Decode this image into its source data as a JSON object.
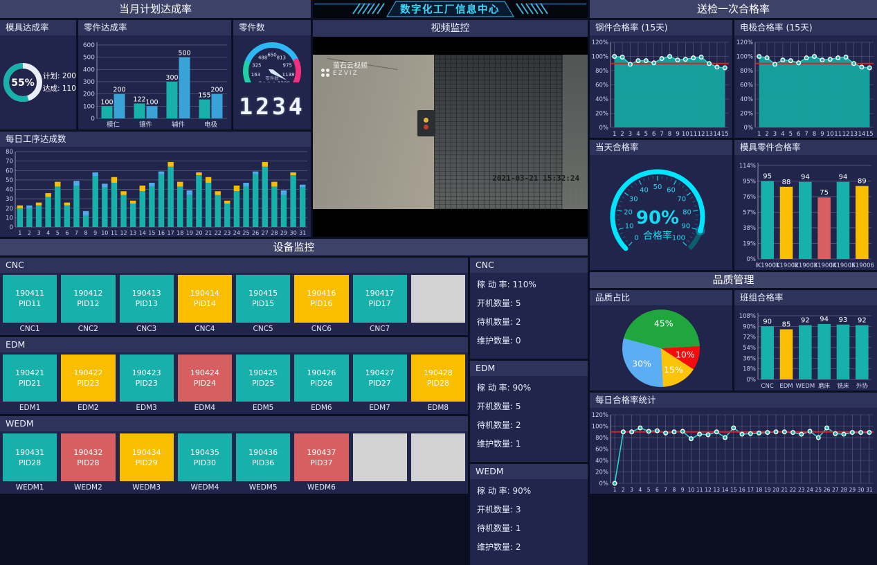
{
  "colors": {
    "teal": "#17b0aa",
    "blue": "#39a3d8",
    "capBlue": "#4fa8e8",
    "yellow": "#f9be00",
    "red": "#d85f5f",
    "gray": "#d2d2d2",
    "cyan": "#00e5ff",
    "cyanDim": "#0b5e6e",
    "green": "#1bd1a5",
    "skyblue": "#2db7f5",
    "pink": "#f5317f",
    "refline": "#e01f1f",
    "pieGreen": "#1fa63c",
    "pieRed": "#f40b0c",
    "pieYellow": "#fbc40a",
    "pieBlue": "#5baef3",
    "areaFill": "#14a5a0",
    "line": "#2ad5cd",
    "marker": "#2bb3ad"
  },
  "header": {
    "title": "数字化工厂信息中心"
  },
  "video": {
    "title": "视频监控",
    "watermark_name": "萤石云视频",
    "watermark_brand": "EZVIZ",
    "timestamp": "2021-03-21 15:32:24"
  },
  "left": {
    "section_title": "当月计划达成率",
    "mold_rate": {
      "title": "模具达成率",
      "percent": 55,
      "percent_label": "55%",
      "plan_label": "计划: 200",
      "done_label": "达成: 110"
    },
    "parts_rate": {
      "title": "零件达成率",
      "categories": [
        "模仁",
        "镶件",
        "辅件",
        "电极"
      ],
      "series": [
        {
          "color_key": "teal",
          "values": [
            100,
            122,
            300,
            155
          ]
        },
        {
          "color_key": "blue",
          "values": [
            200,
            100,
            500,
            200
          ]
        }
      ],
      "yticks": [
        0,
        100,
        200,
        300,
        400,
        500,
        600
      ],
      "ymax": 600
    },
    "parts_count": {
      "title": "零件数",
      "min": 0,
      "max": 1300,
      "value": 1234,
      "tick_labels": [
        "0",
        "163",
        "325",
        "488",
        "650",
        "813",
        "975",
        "1138",
        "1300"
      ],
      "segments": [
        {
          "to": 0.25,
          "color_key": "green"
        },
        {
          "to": 0.75,
          "color_key": "skyblue"
        },
        {
          "to": 1.0,
          "color_key": "pink"
        }
      ],
      "center_label": "零件数",
      "lcd_value": "1234",
      "digital_value": "1234"
    },
    "daily_process": {
      "title": "每日工序达成数",
      "x_labels": [
        "1",
        "2",
        "3",
        "4",
        "5",
        "6",
        "7",
        "8",
        "9",
        "10",
        "11",
        "12",
        "13",
        "14",
        "15",
        "16",
        "17",
        "18",
        "19",
        "20",
        "21",
        "22",
        "23",
        "24",
        "25",
        "26",
        "27",
        "28",
        "29",
        "30",
        "31"
      ],
      "base_values": [
        20,
        20,
        23,
        32,
        43,
        23,
        44,
        12,
        54,
        42,
        47,
        34,
        25,
        38,
        43,
        56,
        64,
        43,
        34,
        55,
        47,
        34,
        25,
        38,
        43,
        56,
        64,
        43,
        34,
        55,
        42
      ],
      "cap_values": [
        3,
        3,
        3,
        4,
        5,
        3,
        5,
        5,
        4,
        4,
        6,
        4,
        3,
        6,
        4,
        3,
        5,
        5,
        5,
        3,
        6,
        4,
        3,
        6,
        4,
        3,
        5,
        5,
        5,
        3,
        3
      ],
      "cap_colors": [
        "y",
        "b",
        "y",
        "y",
        "y",
        "y",
        "b",
        "b",
        "b",
        "b",
        "y",
        "y",
        "y",
        "y",
        "b",
        "b",
        "y",
        "y",
        "b",
        "y",
        "y",
        "y",
        "y",
        "y",
        "b",
        "b",
        "y",
        "y",
        "b",
        "y",
        "b"
      ],
      "yticks": [
        0,
        10,
        20,
        30,
        40,
        50,
        60,
        70,
        80
      ],
      "ymax": 80
    }
  },
  "equipment": {
    "section_title": "设备监控",
    "status_color_keys": {
      "run": "teal",
      "standby": "yellow",
      "maint": "red",
      "empty": "gray"
    },
    "groups": [
      {
        "name": "CNC",
        "tiles": [
          {
            "id": "190411",
            "pid": "PID11",
            "status": "run",
            "label": "CNC1"
          },
          {
            "id": "190412",
            "pid": "PID12",
            "status": "run",
            "label": "CNC2"
          },
          {
            "id": "190413",
            "pid": "PID13",
            "status": "run",
            "label": "CNC3"
          },
          {
            "id": "190414",
            "pid": "PID14",
            "status": "standby",
            "label": "CNC4"
          },
          {
            "id": "190415",
            "pid": "PID15",
            "status": "run",
            "label": "CNC5"
          },
          {
            "id": "190416",
            "pid": "PID16",
            "status": "standby",
            "label": "CNC6"
          },
          {
            "id": "190417",
            "pid": "PID17",
            "status": "run",
            "label": "CNC7"
          },
          {
            "status": "empty"
          }
        ],
        "stats": {
          "title": "CNC",
          "rows": [
            {
              "label": "稼 动 率",
              "value": "110%"
            },
            {
              "label": "开机数量",
              "value": "5"
            },
            {
              "label": "待机数量",
              "value": "2"
            },
            {
              "label": "维护数量",
              "value": "0"
            }
          ]
        }
      },
      {
        "name": "EDM",
        "tiles": [
          {
            "id": "190421",
            "pid": "PID21",
            "status": "run",
            "label": "EDM1"
          },
          {
            "id": "190422",
            "pid": "PID23",
            "status": "standby",
            "label": "EDM2"
          },
          {
            "id": "190423",
            "pid": "PID23",
            "status": "run",
            "label": "EDM3"
          },
          {
            "id": "190424",
            "pid": "PID24",
            "status": "maint",
            "label": "EDM4"
          },
          {
            "id": "190425",
            "pid": "PID25",
            "status": "run",
            "label": "EDM5"
          },
          {
            "id": "190426",
            "pid": "PID26",
            "status": "run",
            "label": "EDM6"
          },
          {
            "id": "190427",
            "pid": "PID27",
            "status": "run",
            "label": "EDM7"
          },
          {
            "id": "190428",
            "pid": "PID28",
            "status": "standby",
            "label": "EDM8"
          }
        ],
        "stats": {
          "title": "EDM",
          "rows": [
            {
              "label": "稼 动 率",
              "value": "90%"
            },
            {
              "label": "开机数量",
              "value": "5"
            },
            {
              "label": "待机数量",
              "value": "2"
            },
            {
              "label": "维护数量",
              "value": "1"
            }
          ]
        }
      },
      {
        "name": "WEDM",
        "tiles": [
          {
            "id": "190431",
            "pid": "PID28",
            "status": "run",
            "label": "WEDM1"
          },
          {
            "id": "190432",
            "pid": "PID28",
            "status": "maint",
            "label": "WEDM2"
          },
          {
            "id": "190434",
            "pid": "PID29",
            "status": "standby",
            "label": "WEDM3"
          },
          {
            "id": "190435",
            "pid": "PID30",
            "status": "run",
            "label": "WEDM4"
          },
          {
            "id": "190436",
            "pid": "PID36",
            "status": "run",
            "label": "WEDM5"
          },
          {
            "id": "190437",
            "pid": "PID37",
            "status": "maint",
            "label": "WEDM6"
          },
          {
            "status": "empty"
          },
          {
            "status": "empty"
          }
        ],
        "stats": {
          "title": "WEDM",
          "rows": [
            {
              "label": "稼 动 率",
              "value": "90%"
            },
            {
              "label": "开机数量",
              "value": "3"
            },
            {
              "label": "待机数量",
              "value": "1"
            },
            {
              "label": "维护数量",
              "value": "2"
            }
          ]
        }
      }
    ]
  },
  "right": {
    "inspection_title": "送检一次合格率",
    "steel_rate": {
      "title": "钢件合格率  (15天)",
      "x_labels": [
        "1",
        "2",
        "3",
        "4",
        "5",
        "6",
        "7",
        "8",
        "9",
        "10",
        "11",
        "12",
        "13",
        "14",
        "15"
      ],
      "values": [
        100,
        99,
        89,
        94,
        94,
        91,
        97,
        100,
        95,
        96,
        98,
        99,
        90,
        85,
        84
      ],
      "refline": 90,
      "yticks": [
        0,
        20,
        40,
        60,
        80,
        100,
        120
      ],
      "ymax": 120
    },
    "electrode_rate": {
      "title": "电极合格率  (15天)",
      "x_labels": [
        "1",
        "2",
        "3",
        "4",
        "5",
        "6",
        "7",
        "8",
        "9",
        "10",
        "11",
        "12",
        "13",
        "14",
        "15"
      ],
      "values": [
        100,
        98,
        89,
        95,
        94,
        91,
        98,
        100,
        95,
        96,
        98,
        99,
        90,
        85,
        84
      ],
      "refline": 90,
      "yticks": [
        0,
        20,
        40,
        60,
        80,
        100,
        120
      ],
      "ymax": 120
    },
    "today_rate": {
      "title": "当天合格率",
      "value": 90,
      "max": 100,
      "tick_labels": [
        "0",
        "10",
        "20",
        "30",
        "40",
        "50",
        "60",
        "70",
        "80",
        "90",
        "100"
      ],
      "value_label": "90%",
      "sub_label": "合格率"
    },
    "mold_parts_rate": {
      "title": "模具零件合格率",
      "categories": [
        "IK19001",
        "IK19002",
        "IK19003",
        "IK19004",
        "IK19005",
        "IK19006"
      ],
      "values": [
        95,
        88,
        94,
        75,
        94,
        89
      ],
      "color_keys": [
        "teal",
        "yellow",
        "teal",
        "red",
        "teal",
        "yellow"
      ],
      "yticks": [
        0,
        19,
        38,
        57,
        76,
        95,
        114
      ],
      "ymax": 114
    },
    "quality_title": "品质管理",
    "quality_pie": {
      "title": "品质占比",
      "start_angle": -75,
      "slices": [
        {
          "label": "45%",
          "value": 45,
          "color_key": "pieGreen"
        },
        {
          "label": "10%",
          "value": 10,
          "color_key": "pieRed"
        },
        {
          "label": "15%",
          "value": 15,
          "color_key": "pieYellow"
        },
        {
          "label": "30%",
          "value": 30,
          "color_key": "pieBlue"
        }
      ]
    },
    "team_rate": {
      "title": "班组合格率",
      "categories": [
        "CNC",
        "EDM",
        "WEDM",
        "磨床",
        "铣床",
        "外协"
      ],
      "values": [
        90,
        85,
        92,
        94,
        93,
        92
      ],
      "color_keys": [
        "teal",
        "yellow",
        "teal",
        "teal",
        "teal",
        "teal"
      ],
      "yticks": [
        0,
        18,
        36,
        54,
        72,
        90,
        108
      ],
      "ymax": 108
    },
    "daily_rate": {
      "title": "每日合格率统计",
      "x_labels": [
        "1",
        "2",
        "3",
        "4",
        "5",
        "6",
        "7",
        "8",
        "9",
        "10",
        "11",
        "12",
        "13",
        "14",
        "15",
        "16",
        "17",
        "18",
        "19",
        "20",
        "21",
        "22",
        "23",
        "24",
        "25",
        "26",
        "27",
        "28",
        "29",
        "30",
        "31"
      ],
      "values": [
        0,
        90,
        90,
        97,
        91,
        92,
        88,
        90,
        91,
        78,
        86,
        85,
        90,
        80,
        97,
        86,
        87,
        88,
        89,
        90,
        90,
        89,
        86,
        91,
        80,
        97,
        87,
        86,
        89,
        89,
        89
      ],
      "refline": 90,
      "yticks": [
        0,
        20,
        40,
        60,
        80,
        100,
        120
      ],
      "ymax": 120
    }
  }
}
